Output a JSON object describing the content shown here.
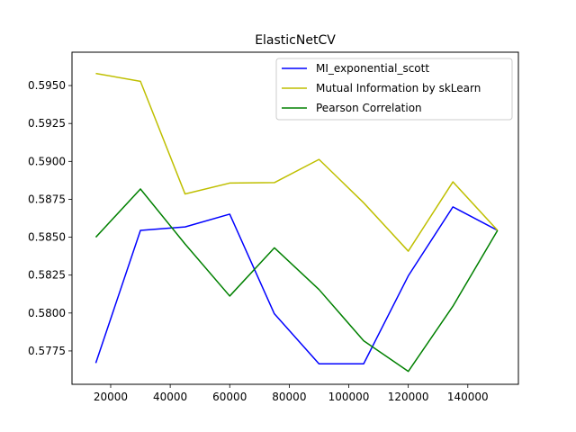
{
  "chart_data": {
    "type": "line",
    "title": "ElasticNetCV",
    "xlabel": "",
    "ylabel": "",
    "x": [
      15000,
      30000,
      45000,
      60000,
      75000,
      90000,
      105000,
      120000,
      135000,
      150000
    ],
    "series": [
      {
        "name": "MI_exponential_scott",
        "color": "#0000ff",
        "values": [
          0.5767,
          0.58545,
          0.58568,
          0.58652,
          0.57995,
          0.57665,
          0.57665,
          0.58245,
          0.587,
          0.58545
        ]
      },
      {
        "name": "Mutual Information by skLearn",
        "color": "#bfbf00",
        "values": [
          0.5958,
          0.59528,
          0.58785,
          0.58857,
          0.5886,
          0.59013,
          0.58727,
          0.58408,
          0.58865,
          0.58545
        ]
      },
      {
        "name": "Pearson Correlation",
        "color": "#008000",
        "values": [
          0.585,
          0.58818,
          0.58455,
          0.58112,
          0.5843,
          0.58155,
          0.57817,
          0.57615,
          0.58045,
          0.58545
        ]
      }
    ],
    "xlim": [
      7000,
      157000
    ],
    "ylim": [
      0.5753,
      0.5972
    ],
    "x_ticks": [
      20000,
      40000,
      60000,
      80000,
      100000,
      120000,
      140000
    ],
    "x_tick_labels": [
      "20000",
      "40000",
      "60000",
      "80000",
      "100000",
      "120000",
      "140000"
    ],
    "y_ticks": [
      0.5775,
      0.58,
      0.5825,
      0.585,
      0.5875,
      0.59,
      0.5925,
      0.595
    ],
    "y_tick_labels": [
      "0.5775",
      "0.5800",
      "0.5825",
      "0.5850",
      "0.5875",
      "0.5900",
      "0.5925",
      "0.5950"
    ],
    "grid": false,
    "legend_position": "top-right"
  }
}
